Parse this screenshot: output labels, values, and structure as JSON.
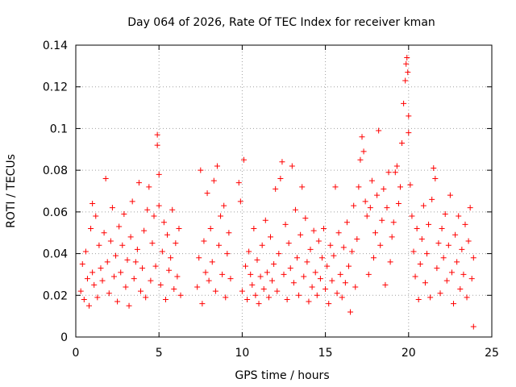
{
  "chart_data": {
    "type": "scatter",
    "title": "Day 064 of 2026, Rate Of TEC Index for receiver kman",
    "xlabel": "GPS time / hours",
    "ylabel": "ROTI / TECUs",
    "xlim": [
      0,
      25
    ],
    "ylim": [
      0,
      0.14
    ],
    "x_ticks": [
      0,
      5,
      10,
      15,
      20,
      25
    ],
    "x_tick_labels": [
      "0",
      "5",
      "10",
      "15",
      "20",
      "25"
    ],
    "y_ticks": [
      0,
      0.02,
      0.04,
      0.06,
      0.08,
      0.1,
      0.12,
      0.14
    ],
    "y_tick_labels": [
      "0",
      "0.02",
      "0.04",
      "0.06",
      "0.08",
      "0.1",
      "0.12",
      "0.14"
    ],
    "grid": true,
    "marker": "plus",
    "color": "#ff0000",
    "series": [
      {
        "points": [
          [
            0.3,
            0.022
          ],
          [
            0.4,
            0.035
          ],
          [
            0.5,
            0.018
          ],
          [
            0.6,
            0.041
          ],
          [
            0.7,
            0.028
          ],
          [
            0.8,
            0.015
          ],
          [
            0.9,
            0.052
          ],
          [
            1.0,
            0.031
          ],
          [
            1.0,
            0.064
          ],
          [
            1.1,
            0.025
          ],
          [
            1.2,
            0.058
          ],
          [
            1.3,
            0.019
          ],
          [
            1.4,
            0.044
          ],
          [
            1.5,
            0.033
          ],
          [
            1.6,
            0.027
          ],
          [
            1.7,
            0.05
          ],
          [
            1.8,
            0.076
          ],
          [
            1.9,
            0.036
          ],
          [
            2.0,
            0.021
          ],
          [
            2.1,
            0.046
          ],
          [
            2.2,
            0.062
          ],
          [
            2.3,
            0.029
          ],
          [
            2.4,
            0.039
          ],
          [
            2.5,
            0.017
          ],
          [
            2.6,
            0.053
          ],
          [
            2.7,
            0.031
          ],
          [
            2.8,
            0.044
          ],
          [
            2.9,
            0.059
          ],
          [
            3.0,
            0.024
          ],
          [
            3.1,
            0.037
          ],
          [
            3.2,
            0.015
          ],
          [
            3.3,
            0.048
          ],
          [
            3.4,
            0.065
          ],
          [
            3.5,
            0.028
          ],
          [
            3.6,
            0.036
          ],
          [
            3.7,
            0.042
          ],
          [
            3.8,
            0.074
          ],
          [
            3.9,
            0.022
          ],
          [
            4.0,
            0.033
          ],
          [
            4.1,
            0.051
          ],
          [
            4.2,
            0.019
          ],
          [
            4.3,
            0.061
          ],
          [
            4.4,
            0.072
          ],
          [
            4.5,
            0.027
          ],
          [
            4.6,
            0.045
          ],
          [
            4.7,
            0.058
          ],
          [
            4.8,
            0.034
          ],
          [
            4.9,
            0.097
          ],
          [
            4.9,
            0.092
          ],
          [
            5.0,
            0.063
          ],
          [
            5.0,
            0.078
          ],
          [
            5.1,
            0.025
          ],
          [
            5.2,
            0.041
          ],
          [
            5.3,
            0.055
          ],
          [
            5.4,
            0.018
          ],
          [
            5.5,
            0.049
          ],
          [
            5.6,
            0.032
          ],
          [
            5.7,
            0.038
          ],
          [
            5.8,
            0.061
          ],
          [
            5.9,
            0.023
          ],
          [
            6.0,
            0.045
          ],
          [
            6.1,
            0.029
          ],
          [
            6.2,
            0.052
          ],
          [
            6.3,
            0.02
          ],
          [
            7.3,
            0.024
          ],
          [
            7.4,
            0.038
          ],
          [
            7.5,
            0.08
          ],
          [
            7.6,
            0.016
          ],
          [
            7.7,
            0.046
          ],
          [
            7.8,
            0.031
          ],
          [
            7.9,
            0.069
          ],
          [
            8.0,
            0.027
          ],
          [
            8.1,
            0.052
          ],
          [
            8.2,
            0.036
          ],
          [
            8.3,
            0.075
          ],
          [
            8.4,
            0.022
          ],
          [
            8.5,
            0.082
          ],
          [
            8.6,
            0.044
          ],
          [
            8.7,
            0.058
          ],
          [
            8.8,
            0.03
          ],
          [
            8.9,
            0.063
          ],
          [
            9.0,
            0.019
          ],
          [
            9.1,
            0.04
          ],
          [
            9.2,
            0.05
          ],
          [
            9.3,
            0.028
          ],
          [
            9.8,
            0.074
          ],
          [
            9.9,
            0.065
          ],
          [
            10.0,
            0.022
          ],
          [
            10.1,
            0.085
          ],
          [
            10.2,
            0.034
          ],
          [
            10.3,
            0.018
          ],
          [
            10.4,
            0.041
          ],
          [
            10.5,
            0.03
          ],
          [
            10.6,
            0.025
          ],
          [
            10.7,
            0.052
          ],
          [
            10.8,
            0.02
          ],
          [
            10.9,
            0.037
          ],
          [
            11.0,
            0.016
          ],
          [
            11.1,
            0.029
          ],
          [
            11.2,
            0.044
          ],
          [
            11.3,
            0.023
          ],
          [
            11.4,
            0.056
          ],
          [
            11.5,
            0.031
          ],
          [
            11.6,
            0.019
          ],
          [
            11.7,
            0.048
          ],
          [
            11.8,
            0.027
          ],
          [
            11.9,
            0.035
          ],
          [
            12.0,
            0.071
          ],
          [
            12.1,
            0.022
          ],
          [
            12.2,
            0.04
          ],
          [
            12.3,
            0.076
          ],
          [
            12.4,
            0.084
          ],
          [
            12.5,
            0.03
          ],
          [
            12.6,
            0.054
          ],
          [
            12.7,
            0.018
          ],
          [
            12.8,
            0.045
          ],
          [
            12.9,
            0.033
          ],
          [
            13.0,
            0.082
          ],
          [
            13.1,
            0.026
          ],
          [
            13.2,
            0.061
          ],
          [
            13.3,
            0.038
          ],
          [
            13.4,
            0.02
          ],
          [
            13.5,
            0.049
          ],
          [
            13.6,
            0.072
          ],
          [
            13.7,
            0.029
          ],
          [
            13.8,
            0.057
          ],
          [
            13.9,
            0.036
          ],
          [
            14.0,
            0.017
          ],
          [
            14.1,
            0.042
          ],
          [
            14.2,
            0.024
          ],
          [
            14.3,
            0.051
          ],
          [
            14.4,
            0.031
          ],
          [
            14.5,
            0.02
          ],
          [
            14.6,
            0.046
          ],
          [
            14.7,
            0.028
          ],
          [
            14.8,
            0.038
          ],
          [
            14.9,
            0.052
          ],
          [
            15.0,
            0.023
          ],
          [
            15.1,
            0.034
          ],
          [
            15.2,
            0.016
          ],
          [
            15.3,
            0.044
          ],
          [
            15.4,
            0.027
          ],
          [
            15.5,
            0.039
          ],
          [
            15.6,
            0.072
          ],
          [
            15.7,
            0.021
          ],
          [
            15.8,
            0.05
          ],
          [
            15.9,
            0.03
          ],
          [
            16.0,
            0.019
          ],
          [
            16.1,
            0.043
          ],
          [
            16.2,
            0.026
          ],
          [
            16.3,
            0.055
          ],
          [
            16.4,
            0.034
          ],
          [
            16.5,
            0.012
          ],
          [
            16.6,
            0.041
          ],
          [
            16.7,
            0.063
          ],
          [
            16.8,
            0.024
          ],
          [
            16.9,
            0.047
          ],
          [
            17.0,
            0.072
          ],
          [
            17.1,
            0.085
          ],
          [
            17.2,
            0.096
          ],
          [
            17.3,
            0.089
          ],
          [
            17.4,
            0.065
          ],
          [
            17.5,
            0.058
          ],
          [
            17.6,
            0.03
          ],
          [
            17.7,
            0.062
          ],
          [
            17.8,
            0.075
          ],
          [
            17.9,
            0.038
          ],
          [
            18.0,
            0.05
          ],
          [
            18.1,
            0.068
          ],
          [
            18.2,
            0.099
          ],
          [
            18.3,
            0.044
          ],
          [
            18.4,
            0.056
          ],
          [
            18.5,
            0.071
          ],
          [
            18.6,
            0.025
          ],
          [
            18.7,
            0.062
          ],
          [
            18.8,
            0.079
          ],
          [
            18.9,
            0.036
          ],
          [
            19.0,
            0.048
          ],
          [
            19.1,
            0.055
          ],
          [
            19.2,
            0.079
          ],
          [
            19.3,
            0.082
          ],
          [
            19.4,
            0.064
          ],
          [
            19.5,
            0.072
          ],
          [
            19.6,
            0.093
          ],
          [
            19.7,
            0.112
          ],
          [
            19.8,
            0.123
          ],
          [
            19.85,
            0.131
          ],
          [
            19.9,
            0.134
          ],
          [
            19.95,
            0.127
          ],
          [
            20.0,
            0.106
          ],
          [
            20.0,
            0.098
          ],
          [
            20.1,
            0.073
          ],
          [
            20.2,
            0.058
          ],
          [
            20.3,
            0.041
          ],
          [
            20.4,
            0.029
          ],
          [
            20.5,
            0.052
          ],
          [
            20.6,
            0.018
          ],
          [
            20.7,
            0.035
          ],
          [
            20.8,
            0.047
          ],
          [
            20.9,
            0.063
          ],
          [
            21.0,
            0.026
          ],
          [
            21.1,
            0.04
          ],
          [
            21.2,
            0.054
          ],
          [
            21.3,
            0.019
          ],
          [
            21.4,
            0.066
          ],
          [
            21.5,
            0.081
          ],
          [
            21.6,
            0.076
          ],
          [
            21.7,
            0.033
          ],
          [
            21.8,
            0.045
          ],
          [
            21.9,
            0.021
          ],
          [
            22.0,
            0.052
          ],
          [
            22.1,
            0.038
          ],
          [
            22.2,
            0.059
          ],
          [
            22.3,
            0.027
          ],
          [
            22.4,
            0.044
          ],
          [
            22.5,
            0.068
          ],
          [
            22.6,
            0.031
          ],
          [
            22.7,
            0.016
          ],
          [
            22.8,
            0.049
          ],
          [
            22.9,
            0.036
          ],
          [
            23.0,
            0.058
          ],
          [
            23.1,
            0.023
          ],
          [
            23.2,
            0.042
          ],
          [
            23.3,
            0.03
          ],
          [
            23.4,
            0.054
          ],
          [
            23.5,
            0.019
          ],
          [
            23.6,
            0.046
          ],
          [
            23.7,
            0.062
          ],
          [
            23.8,
            0.028
          ],
          [
            23.9,
            0.038
          ],
          [
            23.9,
            0.005
          ]
        ]
      }
    ]
  }
}
